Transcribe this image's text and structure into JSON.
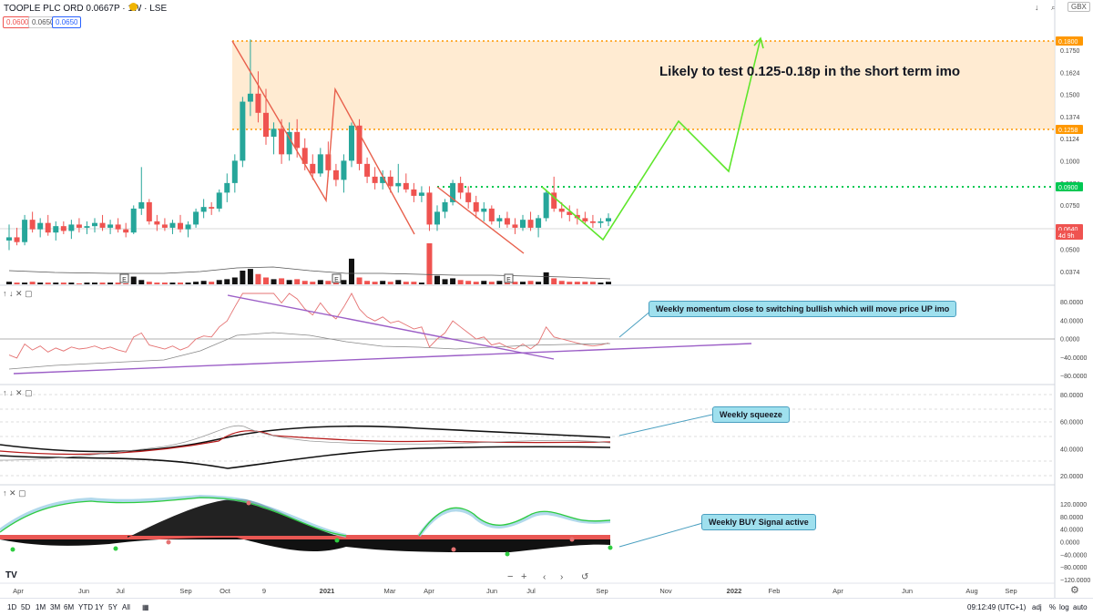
{
  "header": {
    "symbol": "TOOPLE PLC ORD 0.0667P · 1W · LSE",
    "ohlc": [
      "0.0600",
      "0.0650",
      "0.0650"
    ],
    "currency": "GBX",
    "controls": [
      "↓",
      "⌕",
      "⛶"
    ]
  },
  "price_axis": {
    "ticks": [
      "0.1750",
      "0.1624",
      "0.1500",
      "0.1374",
      "0.1124",
      "0.1000",
      "0.0874",
      "0.0750",
      "0.0624",
      "0.0500",
      "0.0374"
    ],
    "badges": [
      {
        "value": "0.1800",
        "color": "#ff9800"
      },
      {
        "value": "0.1258",
        "color": "#ff9800"
      },
      {
        "value": "0.0900",
        "color": "#00c853"
      },
      {
        "value": "0.0640",
        "color": "#ef5350"
      },
      {
        "value": "4d 9h",
        "color": "#ef5350"
      }
    ]
  },
  "annotation_main": "Likely to test 0.125-0.18p  in the short term imo",
  "annotation_momentum": "Weekly momentum close to switching bullish which will move price UP imo",
  "annotation_squeeze": "Weekly squeeze",
  "annotation_buy": "Weekly BUY Signal active",
  "momentum_axis": [
    "80.0000",
    "40.0000",
    "0.0000",
    "−40.0000",
    "−80.0000"
  ],
  "squeeze_axis": [
    "80.0000",
    "60.0000",
    "40.0000",
    "20.0000"
  ],
  "signal_axis": [
    "120.0000",
    "80.0000",
    "40.0000",
    "0.0000",
    "−40.0000",
    "−80.0000",
    "−120.0000"
  ],
  "time_axis": [
    "Apr",
    "Jun",
    "Jul",
    "Sep",
    "Oct",
    "9",
    "2021",
    "Mar",
    "Apr",
    "Jun",
    "Jul",
    "Sep",
    "Nov",
    "2022",
    "Feb",
    "Apr",
    "Jun",
    "Aug",
    "Sep"
  ],
  "earnings_markers": [
    "E",
    "E",
    "E"
  ],
  "bottom_bar": {
    "ranges": [
      "1D",
      "5D",
      "1M",
      "3M",
      "6M",
      "YTD",
      "1Y",
      "5Y",
      "All"
    ],
    "clock": "09:12:49 (UTC+1)",
    "right": [
      "adj",
      "%",
      "log",
      "auto"
    ]
  },
  "pane_tools": [
    "↑",
    "↓",
    "✕",
    "▢"
  ],
  "chart_data": {
    "type": "candlestick",
    "title": "TOOPLE PLC ORD 0.0667P · 1W · LSE",
    "ylim": [
      0.03,
      0.18
    ],
    "candles": [
      [
        0.05,
        0.06,
        0.044,
        0.052
      ],
      [
        0.052,
        0.058,
        0.047,
        0.049
      ],
      [
        0.049,
        0.066,
        0.047,
        0.063
      ],
      [
        0.063,
        0.068,
        0.055,
        0.057
      ],
      [
        0.057,
        0.064,
        0.052,
        0.061
      ],
      [
        0.061,
        0.066,
        0.053,
        0.055
      ],
      [
        0.055,
        0.062,
        0.05,
        0.059
      ],
      [
        0.059,
        0.062,
        0.054,
        0.056
      ],
      [
        0.056,
        0.063,
        0.051,
        0.06
      ],
      [
        0.06,
        0.064,
        0.055,
        0.058
      ],
      [
        0.058,
        0.062,
        0.054,
        0.059
      ],
      [
        0.059,
        0.064,
        0.055,
        0.061
      ],
      [
        0.061,
        0.066,
        0.056,
        0.058
      ],
      [
        0.058,
        0.063,
        0.054,
        0.06
      ],
      [
        0.06,
        0.064,
        0.055,
        0.057
      ],
      [
        0.057,
        0.061,
        0.052,
        0.055
      ],
      [
        0.055,
        0.072,
        0.054,
        0.07
      ],
      [
        0.07,
        0.096,
        0.066,
        0.074
      ],
      [
        0.074,
        0.076,
        0.06,
        0.062
      ],
      [
        0.062,
        0.066,
        0.056,
        0.06
      ],
      [
        0.06,
        0.064,
        0.056,
        0.058
      ],
      [
        0.058,
        0.063,
        0.054,
        0.061
      ],
      [
        0.061,
        0.066,
        0.055,
        0.057
      ],
      [
        0.057,
        0.062,
        0.052,
        0.06
      ],
      [
        0.06,
        0.07,
        0.058,
        0.068
      ],
      [
        0.068,
        0.076,
        0.064,
        0.071
      ],
      [
        0.071,
        0.074,
        0.066,
        0.07
      ],
      [
        0.07,
        0.082,
        0.068,
        0.08
      ],
      [
        0.08,
        0.092,
        0.074,
        0.086
      ],
      [
        0.086,
        0.104,
        0.08,
        0.1
      ],
      [
        0.1,
        0.14,
        0.096,
        0.137
      ],
      [
        0.137,
        0.176,
        0.128,
        0.142
      ],
      [
        0.142,
        0.156,
        0.124,
        0.13
      ],
      [
        0.13,
        0.145,
        0.11,
        0.115
      ],
      [
        0.115,
        0.124,
        0.104,
        0.12
      ],
      [
        0.12,
        0.126,
        0.098,
        0.104
      ],
      [
        0.104,
        0.124,
        0.1,
        0.118
      ],
      [
        0.118,
        0.126,
        0.102,
        0.108
      ],
      [
        0.108,
        0.114,
        0.094,
        0.098
      ],
      [
        0.098,
        0.104,
        0.088,
        0.092
      ],
      [
        0.092,
        0.108,
        0.09,
        0.104
      ],
      [
        0.104,
        0.112,
        0.09,
        0.094
      ],
      [
        0.094,
        0.098,
        0.084,
        0.088
      ],
      [
        0.088,
        0.104,
        0.08,
        0.1
      ],
      [
        0.1,
        0.124,
        0.096,
        0.122
      ],
      [
        0.122,
        0.126,
        0.094,
        0.098
      ],
      [
        0.098,
        0.102,
        0.086,
        0.09
      ],
      [
        0.09,
        0.096,
        0.082,
        0.086
      ],
      [
        0.086,
        0.094,
        0.082,
        0.09
      ],
      [
        0.09,
        0.094,
        0.08,
        0.084
      ],
      [
        0.084,
        0.098,
        0.08,
        0.086
      ],
      [
        0.086,
        0.092,
        0.08,
        0.082
      ],
      [
        0.082,
        0.086,
        0.074,
        0.078
      ],
      [
        0.078,
        0.084,
        0.074,
        0.08
      ],
      [
        0.08,
        0.084,
        0.056,
        0.06
      ],
      [
        0.06,
        0.072,
        0.056,
        0.068
      ],
      [
        0.068,
        0.076,
        0.064,
        0.074
      ],
      [
        0.074,
        0.088,
        0.072,
        0.086
      ],
      [
        0.086,
        0.09,
        0.076,
        0.08
      ],
      [
        0.08,
        0.084,
        0.07,
        0.074
      ],
      [
        0.074,
        0.078,
        0.064,
        0.068
      ],
      [
        0.068,
        0.074,
        0.062,
        0.07
      ],
      [
        0.07,
        0.072,
        0.06,
        0.062
      ],
      [
        0.062,
        0.066,
        0.058,
        0.064
      ],
      [
        0.064,
        0.068,
        0.058,
        0.06
      ],
      [
        0.06,
        0.064,
        0.054,
        0.058
      ],
      [
        0.058,
        0.066,
        0.056,
        0.063
      ],
      [
        0.063,
        0.068,
        0.056,
        0.058
      ],
      [
        0.058,
        0.066,
        0.052,
        0.064
      ],
      [
        0.064,
        0.082,
        0.062,
        0.08
      ],
      [
        0.08,
        0.09,
        0.068,
        0.07
      ],
      [
        0.07,
        0.074,
        0.064,
        0.068
      ],
      [
        0.068,
        0.072,
        0.062,
        0.066
      ],
      [
        0.066,
        0.07,
        0.06,
        0.064
      ],
      [
        0.064,
        0.068,
        0.06,
        0.062
      ],
      [
        0.062,
        0.066,
        0.058,
        0.061
      ],
      [
        0.061,
        0.064,
        0.058,
        0.062
      ],
      [
        0.062,
        0.067,
        0.059,
        0.064
      ]
    ],
    "volume": [
      3,
      2,
      2,
      3,
      2,
      2,
      2,
      2,
      2,
      1,
      2,
      2,
      2,
      2,
      2,
      1,
      9,
      5,
      3,
      2,
      2,
      2,
      2,
      2,
      3,
      4,
      3,
      5,
      6,
      8,
      16,
      18,
      12,
      8,
      6,
      7,
      5,
      6,
      4,
      3,
      5,
      4,
      3,
      5,
      30,
      8,
      4,
      3,
      4,
      3,
      5,
      3,
      3,
      2,
      48,
      10,
      6,
      7,
      5,
      4,
      3,
      4,
      3,
      4,
      3,
      3,
      3,
      4,
      3,
      14,
      7,
      4,
      3,
      3,
      3,
      3,
      2,
      3
    ],
    "levels": {
      "resistance_top": 0.18,
      "resistance_bottom": 0.1258,
      "breakout": 0.09,
      "last": 0.064
    }
  }
}
